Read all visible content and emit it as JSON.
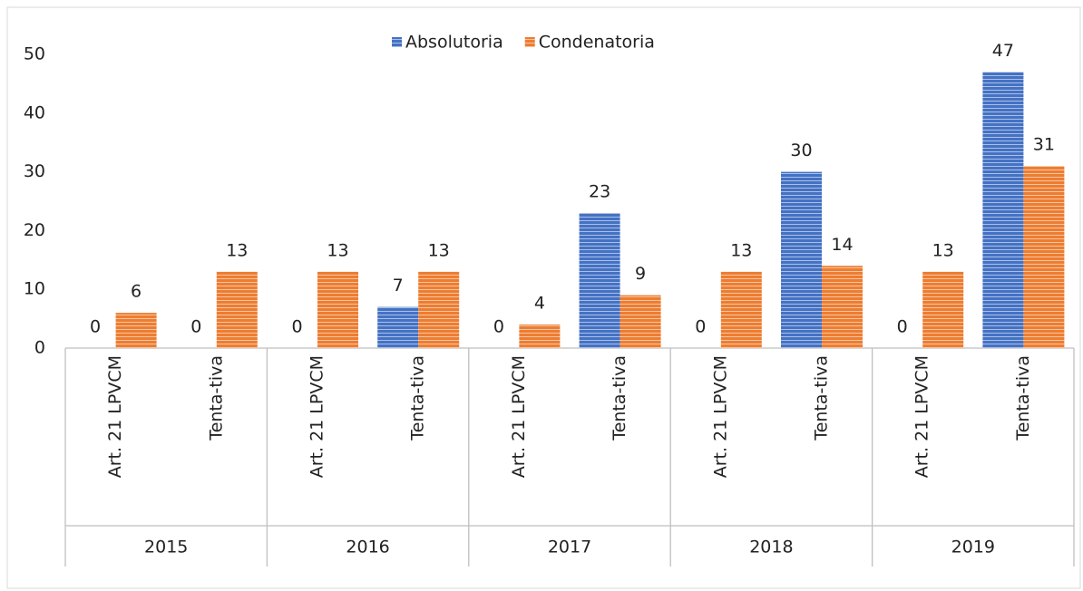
{
  "chart_data": {
    "type": "bar",
    "groups": [
      "2015",
      "2016",
      "2017",
      "2018",
      "2019"
    ],
    "categories": [
      "Art. 21 LPVCM",
      "Tenta-tiva",
      "Art. 21 LPVCM",
      "Tenta-tiva",
      "Art. 21 LPVCM",
      "Tenta-tiva",
      "Art. 21 LPVCM",
      "Tenta-tiva",
      "Art. 21 LPVCM",
      "Tenta-tiva"
    ],
    "series": [
      {
        "name": "Absolutoria",
        "color": "#4472c4",
        "values": [
          0,
          0,
          0,
          7,
          0,
          23,
          0,
          30,
          0,
          47
        ]
      },
      {
        "name": "Condenatoria",
        "color": "#ed7d31",
        "values": [
          6,
          13,
          13,
          13,
          4,
          9,
          13,
          14,
          13,
          31
        ]
      }
    ],
    "ylim": [
      0,
      50
    ],
    "yticks": [
      0,
      10,
      20,
      30,
      40,
      50
    ],
    "grid": false,
    "legend": "top"
  }
}
